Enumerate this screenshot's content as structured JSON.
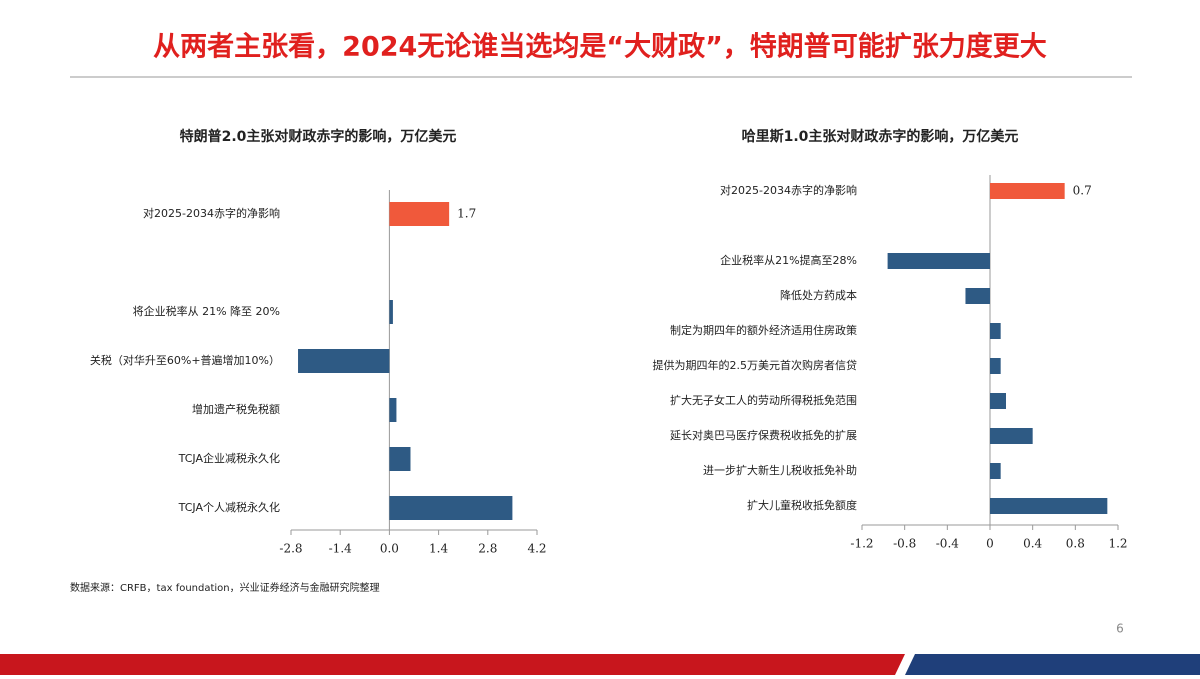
{
  "header": {
    "title": "从两者主张看，2024无论谁当选均是“大财政”，特朗普可能扩张力度更大"
  },
  "source": "数据来源：CRFB，tax foundation，兴业证券经济与金融研究院整理",
  "page_number": "6",
  "chart_data": [
    {
      "type": "bar",
      "orientation": "horizontal",
      "title": "特朗普2.0主张对财政赤字的影响，万亿美元",
      "categories": [
        "对2025-2034赤字的净影响",
        null,
        "将企业税率从 21% 降至 20%",
        "关税（对华升至60%+普遍增加10%）",
        "增加遗产税免税额",
        "TCJA企业减税永久化",
        "TCJA个人减税永久化"
      ],
      "values": [
        1.7,
        null,
        0.1,
        -2.6,
        0.2,
        0.6,
        3.5
      ],
      "colors": [
        "#f0593b",
        null,
        "#2e5a84",
        "#2e5a84",
        "#2e5a84",
        "#2e5a84",
        "#2e5a84"
      ],
      "xlim": [
        -2.8,
        4.2
      ],
      "xticks": [
        -2.8,
        -1.4,
        {
          "value": 0,
          "label": "0.0"
        },
        1.4,
        2.8,
        4.2
      ]
    },
    {
      "type": "bar",
      "orientation": "horizontal",
      "title": "哈里斯1.0主张对财政赤字的影响，万亿美元",
      "categories": [
        "对2025-2034赤字的净影响",
        null,
        "企业税率从21%提高至28%",
        "降低处方药成本",
        "制定为期四年的额外经济适用住房政策",
        "提供为期四年的2.5万美元首次购房者信贷",
        "扩大无子女工人的劳动所得税抵免范围",
        "延长对奥巴马医疗保费税收抵免的扩展",
        "进一步扩大新生儿税收抵免补助",
        "扩大儿童税收抵免额度"
      ],
      "values": [
        0.7,
        null,
        -0.96,
        -0.23,
        0.1,
        0.1,
        0.15,
        0.4,
        0.1,
        1.1
      ],
      "colors": [
        "#f0593b",
        null,
        "#2e5a84",
        "#2e5a84",
        "#2e5a84",
        "#2e5a84",
        "#2e5a84",
        "#2e5a84",
        "#2e5a84",
        "#2e5a84"
      ],
      "xlim": [
        -1.2,
        1.2
      ],
      "xticks": [
        -1.2,
        -0.8,
        -0.4,
        0,
        0.4,
        0.8,
        1.2
      ]
    }
  ]
}
